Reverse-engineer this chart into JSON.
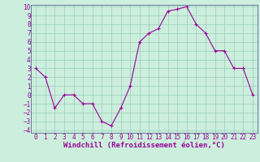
{
  "x": [
    0,
    1,
    2,
    3,
    4,
    5,
    6,
    7,
    8,
    9,
    10,
    11,
    12,
    13,
    14,
    15,
    16,
    17,
    18,
    19,
    20,
    21,
    22,
    23
  ],
  "y": [
    3,
    2,
    -1.5,
    0,
    0,
    -1,
    -1,
    -3,
    -3.5,
    -1.5,
    1,
    6,
    7,
    7.5,
    9.5,
    9.7,
    10,
    8,
    7,
    5,
    5,
    3,
    3,
    0
  ],
  "line_color": "#990099",
  "marker": "+",
  "marker_color": "#990099",
  "bg_color": "#cceedd",
  "grid_color": "#99ccbb",
  "xlabel": "Windchill (Refroidissement éolien,°C)",
  "xlabel_color": "#990099",
  "tick_color": "#990099",
  "spine_color": "#667799",
  "ylim": [
    -4,
    10
  ],
  "xlim": [
    -0.5,
    23.5
  ],
  "yticks": [
    -4,
    -3,
    -2,
    -1,
    0,
    1,
    2,
    3,
    4,
    5,
    6,
    7,
    8,
    9,
    10
  ],
  "xticks": [
    0,
    1,
    2,
    3,
    4,
    5,
    6,
    7,
    8,
    9,
    10,
    11,
    12,
    13,
    14,
    15,
    16,
    17,
    18,
    19,
    20,
    21,
    22,
    23
  ],
  "font_size": 5.5,
  "xlabel_fontsize": 6.5,
  "linewidth": 0.8,
  "markersize": 2.5
}
